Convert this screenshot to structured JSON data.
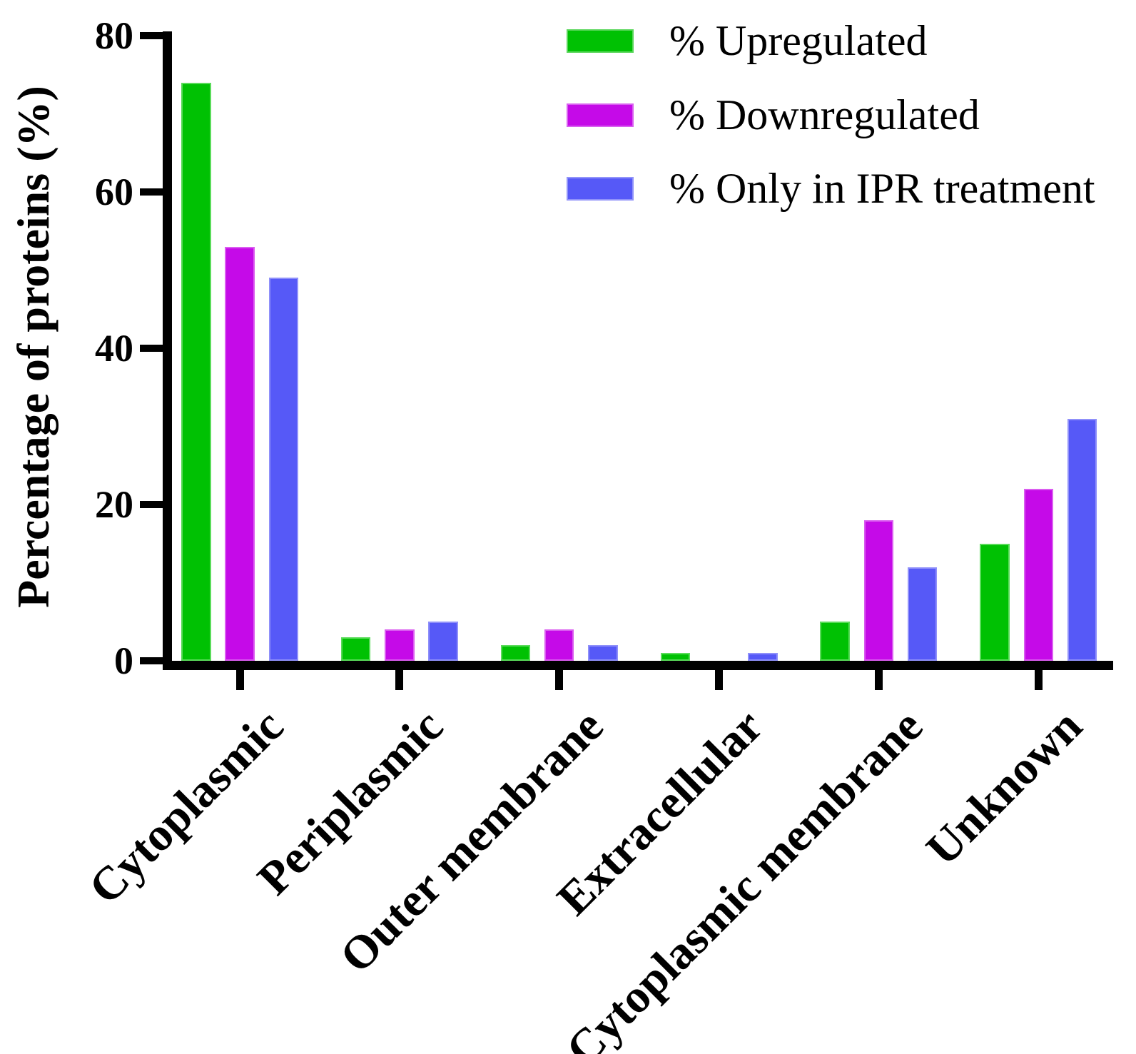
{
  "chart_data": {
    "type": "bar",
    "title": "",
    "ylabel": "Percentage of proteins (%)",
    "xlabel": "",
    "ylim": [
      0,
      80
    ],
    "yticks": [
      0,
      20,
      40,
      60,
      80
    ],
    "grid": false,
    "legend_position": "top-right-inside",
    "axis_color": "#000000",
    "background_color": "#ffffff",
    "categories": [
      "Cytoplasmic",
      "Periplasmic",
      "Outer membrane",
      "Extracellular",
      "Cytoplasmic membrane",
      "Unknown"
    ],
    "series": [
      {
        "name": "% Upregulated",
        "color": "#00C103",
        "edge_color": "#5ADB5A",
        "values": [
          74,
          3,
          2,
          1,
          5,
          15
        ]
      },
      {
        "name": "% Downregulated",
        "color": "#C50AE8",
        "edge_color": "#DA5CF0",
        "values": [
          53,
          4,
          4,
          0,
          18,
          22
        ]
      },
      {
        "name": "% Only in IPR treatment",
        "color": "#5659F7",
        "edge_color": "#8F90FA",
        "values": [
          49,
          5,
          2,
          1,
          12,
          31
        ]
      }
    ]
  }
}
